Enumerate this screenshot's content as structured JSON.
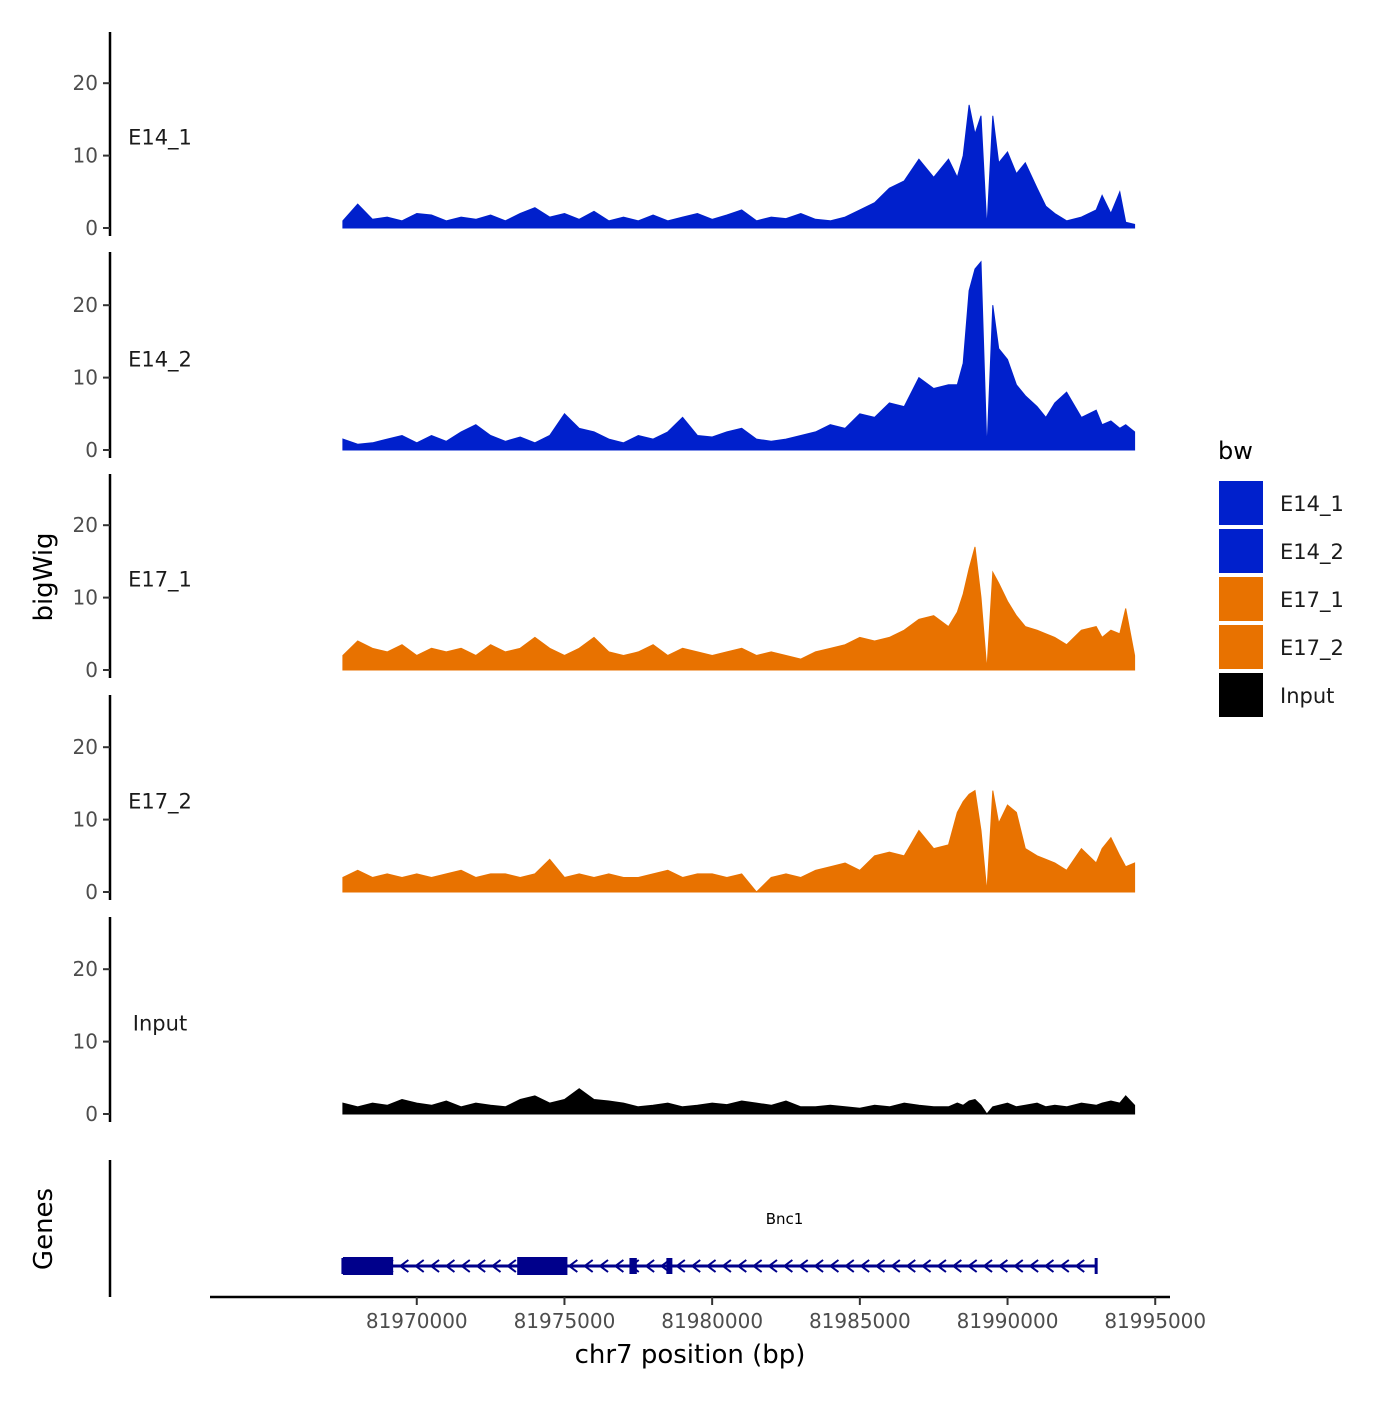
{
  "chart_data": {
    "type": "area",
    "title": "",
    "xlabel": "chr7 position (bp)",
    "ylabel": "bigWig",
    "genes_panel_label": "Genes",
    "xlim": [
      81963000,
      81995500
    ],
    "x_ticks": [
      81970000,
      81975000,
      81980000,
      81985000,
      81990000,
      81995000
    ],
    "x_tick_labels": [
      "81970000",
      "81975000",
      "81980000",
      "81985000",
      "81990000",
      "81995000"
    ],
    "ylim": [
      0,
      27
    ],
    "y_ticks": [
      0,
      10,
      20
    ],
    "y_tick_labels": [
      "0",
      "10",
      "20"
    ],
    "legend": {
      "title": "bw",
      "position": "right",
      "entries": [
        {
          "label": "E14_1",
          "color": "#0020cc"
        },
        {
          "label": "E14_2",
          "color": "#0020cc"
        },
        {
          "label": "E17_1",
          "color": "#e87200"
        },
        {
          "label": "E17_2",
          "color": "#e87200"
        },
        {
          "label": "Input",
          "color": "#000000"
        }
      ]
    },
    "series": [
      {
        "name": "E14_1",
        "label": "E14_1",
        "color": "#0020cc",
        "x": [
          81967500,
          81968000,
          81968500,
          81969000,
          81969500,
          81970000,
          81970500,
          81971000,
          81971500,
          81972000,
          81972500,
          81973000,
          81973500,
          81974000,
          81974500,
          81975000,
          81975500,
          81976000,
          81976500,
          81977000,
          81977500,
          81978000,
          81978500,
          81979000,
          81979500,
          81980000,
          81980500,
          81981000,
          81981500,
          81982000,
          81982500,
          81983000,
          81983500,
          81984000,
          81984500,
          81985000,
          81985500,
          81986000,
          81986500,
          81987000,
          81987500,
          81988000,
          81988300,
          81988500,
          81988700,
          81988900,
          81989100,
          81989300,
          81989500,
          81989700,
          81990000,
          81990300,
          81990600,
          81991000,
          81991300,
          81991600,
          81992000,
          81992500,
          81993000,
          81993200,
          81993500,
          81993800,
          81994000,
          81994300
        ],
        "values": [
          1.0,
          3.3,
          1.2,
          1.5,
          1.0,
          2.0,
          1.8,
          1.0,
          1.5,
          1.2,
          1.8,
          1.0,
          2.0,
          2.8,
          1.5,
          2.0,
          1.2,
          2.3,
          1.0,
          1.5,
          1.0,
          1.8,
          1.0,
          1.5,
          2.0,
          1.2,
          1.8,
          2.5,
          1.0,
          1.5,
          1.3,
          2.0,
          1.2,
          1.0,
          1.5,
          2.5,
          3.5,
          5.5,
          6.5,
          9.5,
          7.0,
          9.5,
          7.0,
          10.0,
          17.0,
          13.0,
          15.5,
          0.0,
          15.5,
          9.0,
          10.5,
          7.5,
          9.0,
          5.5,
          3.0,
          2.0,
          1.0,
          1.5,
          2.5,
          4.5,
          2.0,
          5.0,
          0.8,
          0.5
        ]
      },
      {
        "name": "E14_2",
        "label": "E14_2",
        "color": "#0020cc",
        "x": [
          81967500,
          81968000,
          81968500,
          81969000,
          81969500,
          81970000,
          81970500,
          81971000,
          81971500,
          81972000,
          81972500,
          81973000,
          81973500,
          81974000,
          81974500,
          81975000,
          81975500,
          81976000,
          81976500,
          81977000,
          81977500,
          81978000,
          81978500,
          81979000,
          81979500,
          81980000,
          81980500,
          81981000,
          81981500,
          81982000,
          81982500,
          81983000,
          81983500,
          81984000,
          81984500,
          81985000,
          81985500,
          81986000,
          81986500,
          81987000,
          81987500,
          81988000,
          81988300,
          81988500,
          81988700,
          81988900,
          81989100,
          81989300,
          81989500,
          81989700,
          81990000,
          81990300,
          81990600,
          81991000,
          81991300,
          81991600,
          81992000,
          81992500,
          81993000,
          81993200,
          81993500,
          81993800,
          81994000,
          81994300
        ],
        "values": [
          1.5,
          0.8,
          1.0,
          1.5,
          2.0,
          1.0,
          2.0,
          1.2,
          2.5,
          3.5,
          2.0,
          1.2,
          1.8,
          1.0,
          2.0,
          5.0,
          3.0,
          2.5,
          1.5,
          1.0,
          2.0,
          1.5,
          2.5,
          4.5,
          2.0,
          1.8,
          2.5,
          3.0,
          1.5,
          1.2,
          1.5,
          2.0,
          2.5,
          3.5,
          3.0,
          5.0,
          4.5,
          6.5,
          6.0,
          10.0,
          8.5,
          9.0,
          9.0,
          12.0,
          22.0,
          25.0,
          26.0,
          0.0,
          20.0,
          14.0,
          12.5,
          9.0,
          7.5,
          6.0,
          4.5,
          6.5,
          8.0,
          4.5,
          5.5,
          3.5,
          4.0,
          3.0,
          3.5,
          2.5
        ]
      },
      {
        "name": "E17_1",
        "label": "E17_1",
        "color": "#e87200",
        "x": [
          81967500,
          81968000,
          81968500,
          81969000,
          81969500,
          81970000,
          81970500,
          81971000,
          81971500,
          81972000,
          81972500,
          81973000,
          81973500,
          81974000,
          81974500,
          81975000,
          81975500,
          81976000,
          81976500,
          81977000,
          81977500,
          81978000,
          81978500,
          81979000,
          81979500,
          81980000,
          81980500,
          81981000,
          81981500,
          81982000,
          81982500,
          81983000,
          81983500,
          81984000,
          81984500,
          81985000,
          81985500,
          81986000,
          81986500,
          81987000,
          81987500,
          81988000,
          81988300,
          81988500,
          81988700,
          81988900,
          81989100,
          81989300,
          81989500,
          81989700,
          81990000,
          81990300,
          81990600,
          81991000,
          81991300,
          81991600,
          81992000,
          81992500,
          81993000,
          81993200,
          81993500,
          81993800,
          81994000,
          81994300
        ],
        "values": [
          2.0,
          4.0,
          3.0,
          2.5,
          3.5,
          2.0,
          3.0,
          2.5,
          3.0,
          2.0,
          3.5,
          2.5,
          3.0,
          4.5,
          3.0,
          2.0,
          3.0,
          4.5,
          2.5,
          2.0,
          2.5,
          3.5,
          2.0,
          3.0,
          2.5,
          2.0,
          2.5,
          3.0,
          2.0,
          2.5,
          2.0,
          1.5,
          2.5,
          3.0,
          3.5,
          4.5,
          4.0,
          4.5,
          5.5,
          7.0,
          7.5,
          6.0,
          8.0,
          10.5,
          14.0,
          17.0,
          10.0,
          0.0,
          13.5,
          12.0,
          9.5,
          7.5,
          6.0,
          5.5,
          5.0,
          4.5,
          3.5,
          5.5,
          6.0,
          4.5,
          5.5,
          5.0,
          8.5,
          2.0
        ]
      },
      {
        "name": "E17_2",
        "label": "E17_2",
        "color": "#e87200",
        "x": [
          81967500,
          81968000,
          81968500,
          81969000,
          81969500,
          81970000,
          81970500,
          81971000,
          81971500,
          81972000,
          81972500,
          81973000,
          81973500,
          81974000,
          81974500,
          81975000,
          81975500,
          81976000,
          81976500,
          81977000,
          81977500,
          81978000,
          81978500,
          81979000,
          81979500,
          81980000,
          81980500,
          81981000,
          81981500,
          81982000,
          81982500,
          81983000,
          81983500,
          81984000,
          81984500,
          81985000,
          81985500,
          81986000,
          81986500,
          81987000,
          81987500,
          81988000,
          81988300,
          81988500,
          81988700,
          81988900,
          81989100,
          81989300,
          81989500,
          81989700,
          81990000,
          81990300,
          81990600,
          81991000,
          81991300,
          81991600,
          81992000,
          81992500,
          81993000,
          81993200,
          81993500,
          81993800,
          81994000,
          81994300
        ],
        "values": [
          2.0,
          3.0,
          2.0,
          2.5,
          2.0,
          2.5,
          2.0,
          2.5,
          3.0,
          2.0,
          2.5,
          2.5,
          2.0,
          2.5,
          4.5,
          2.0,
          2.5,
          2.0,
          2.5,
          2.0,
          2.0,
          2.5,
          3.0,
          2.0,
          2.5,
          2.5,
          2.0,
          2.5,
          0.0,
          2.0,
          2.5,
          2.0,
          3.0,
          3.5,
          4.0,
          3.0,
          5.0,
          5.5,
          5.0,
          8.5,
          6.0,
          6.5,
          11.0,
          12.5,
          13.5,
          14.0,
          8.5,
          0.0,
          14.0,
          9.5,
          12.0,
          11.0,
          6.0,
          5.0,
          4.5,
          4.0,
          3.0,
          6.0,
          4.0,
          6.0,
          7.5,
          5.0,
          3.5,
          4.0
        ]
      },
      {
        "name": "Input",
        "label": "Input",
        "color": "#000000",
        "x": [
          81967500,
          81968000,
          81968500,
          81969000,
          81969500,
          81970000,
          81970500,
          81971000,
          81971500,
          81972000,
          81972500,
          81973000,
          81973500,
          81974000,
          81974500,
          81975000,
          81975500,
          81976000,
          81976500,
          81977000,
          81977500,
          81978000,
          81978500,
          81979000,
          81979500,
          81980000,
          81980500,
          81981000,
          81981500,
          81982000,
          81982500,
          81983000,
          81983500,
          81984000,
          81984500,
          81985000,
          81985500,
          81986000,
          81986500,
          81987000,
          81987500,
          81988000,
          81988300,
          81988500,
          81988700,
          81988900,
          81989100,
          81989300,
          81989500,
          81989700,
          81990000,
          81990300,
          81990600,
          81991000,
          81991300,
          81991600,
          81992000,
          81992500,
          81993000,
          81993200,
          81993500,
          81993800,
          81994000,
          81994300
        ],
        "values": [
          1.5,
          1.0,
          1.5,
          1.2,
          2.0,
          1.5,
          1.2,
          1.8,
          1.0,
          1.5,
          1.2,
          1.0,
          2.0,
          2.5,
          1.5,
          2.0,
          3.5,
          2.0,
          1.8,
          1.5,
          1.0,
          1.2,
          1.5,
          1.0,
          1.2,
          1.5,
          1.3,
          1.8,
          1.5,
          1.2,
          1.8,
          1.0,
          1.0,
          1.2,
          1.0,
          0.8,
          1.2,
          1.0,
          1.5,
          1.2,
          1.0,
          1.0,
          1.5,
          1.2,
          1.8,
          2.0,
          1.2,
          0.0,
          1.0,
          1.2,
          1.5,
          1.0,
          1.2,
          1.5,
          1.0,
          1.2,
          1.0,
          1.5,
          1.2,
          1.5,
          1.8,
          1.5,
          2.5,
          1.2
        ]
      }
    ],
    "gene": {
      "name": "Bnc1",
      "strand": "-",
      "start": 81967500,
      "end": 81993000,
      "exons": [
        [
          81967500,
          81969200
        ],
        [
          81973400,
          81975100
        ],
        [
          81977200,
          81977450
        ],
        [
          81978450,
          81978550
        ]
      ],
      "arrow_spacing_bp": 520
    }
  }
}
